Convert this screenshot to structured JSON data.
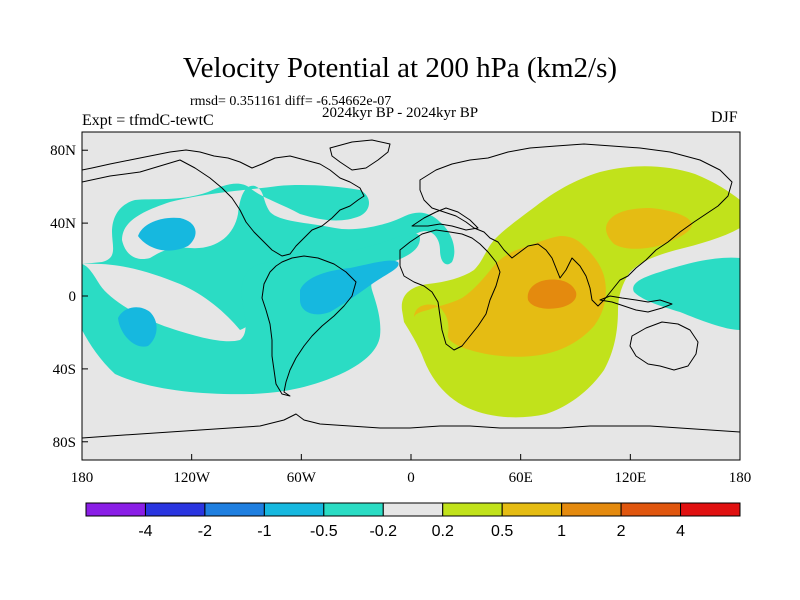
{
  "title": "Velocity Potential at 200 hPa (km2/s)",
  "stats_line": "rmsd= 0.351161 diff= -6.54662e-07",
  "period_line": "2024kyr BP - 2024kyr BP",
  "experiment_label": "Expt = tfmdC-tewtC",
  "season": "DJF",
  "x_ticks": [
    {
      "lon": -180,
      "label": "180"
    },
    {
      "lon": -120,
      "label": "120W"
    },
    {
      "lon": -60,
      "label": "60W"
    },
    {
      "lon": 0,
      "label": "0"
    },
    {
      "lon": 60,
      "label": "60E"
    },
    {
      "lon": 120,
      "label": "120E"
    },
    {
      "lon": 180,
      "label": "180"
    }
  ],
  "y_ticks": [
    {
      "lat": 80,
      "label": "80N"
    },
    {
      "lat": 40,
      "label": "40N"
    },
    {
      "lat": 0,
      "label": "0"
    },
    {
      "lat": -40,
      "label": "40S"
    },
    {
      "lat": -80,
      "label": "80S"
    }
  ],
  "colorbar": {
    "colors": [
      "#8a1ee6",
      "#2a35e0",
      "#1f7fe0",
      "#16b8df",
      "#2bdcc4",
      "#e6e6e6",
      "#c1e21b",
      "#e5bc13",
      "#e48a0e",
      "#e0560e",
      "#e01010"
    ],
    "labels": [
      "-4",
      "-2",
      "-1",
      "-0.5",
      "-0.2",
      "0.2",
      "0.5",
      "1",
      "2",
      "4"
    ]
  },
  "map_colors": {
    "background": "#e6e6e6",
    "neg_0_2": "#2bdcc4",
    "neg_0_5": "#16b8df",
    "pos_0_2": "#c1e21b",
    "pos_0_5": "#e5bc13",
    "pos_1": "#e48a0e",
    "coast": "#000000"
  }
}
